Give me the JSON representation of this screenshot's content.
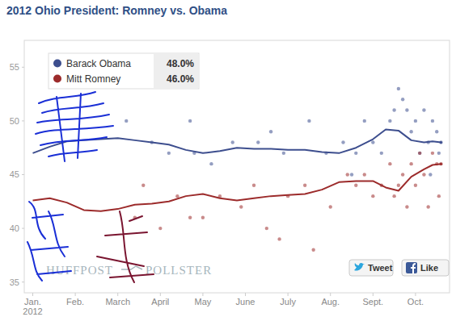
{
  "chart_data": {
    "type": "line",
    "title": "2012 Ohio President: Romney vs. Obama",
    "x": [
      1.0,
      1.4,
      1.8,
      2.2,
      2.6,
      3.0,
      3.4,
      3.8,
      4.2,
      4.6,
      5.0,
      5.4,
      5.8,
      6.2,
      6.6,
      7.0,
      7.4,
      7.8,
      8.2,
      8.6,
      9.0,
      9.3,
      9.6,
      9.9,
      10.2,
      10.4,
      10.6
    ],
    "xlim": [
      0.8,
      10.8
    ],
    "xticks": [
      {
        "value": 1,
        "label": "Jan."
      },
      {
        "value": 2,
        "label": "Feb."
      },
      {
        "value": 3,
        "label": "March"
      },
      {
        "value": 4,
        "label": "April"
      },
      {
        "value": 5,
        "label": "May"
      },
      {
        "value": 6,
        "label": "June"
      },
      {
        "value": 7,
        "label": "July"
      },
      {
        "value": 8,
        "label": "Aug."
      },
      {
        "value": 9,
        "label": "Sept."
      },
      {
        "value": 10,
        "label": "Oct."
      }
    ],
    "ylim": [
      34,
      57.5
    ],
    "yticks": [
      35,
      40,
      45,
      50,
      55
    ],
    "grid": false,
    "legend": "top-left",
    "year_label": "2012",
    "watermark": [
      "HUFFPOST",
      "POLLSTER"
    ],
    "buttons": [
      "Tweet",
      "Like"
    ],
    "series": [
      {
        "name": "Barack Obama",
        "color": "#3d4e8e",
        "marker": "circle",
        "values": [
          47.0,
          47.6,
          48.1,
          48.2,
          48.3,
          48.4,
          48.2,
          48.0,
          47.8,
          47.3,
          47.0,
          47.2,
          47.5,
          47.4,
          47.4,
          47.3,
          47.3,
          47.1,
          47.0,
          47.5,
          48.3,
          49.2,
          49.1,
          48.2,
          48.0,
          48.1,
          48.0
        ],
        "latest": {
          "value": 48.0,
          "label": "48.0%"
        },
        "polls": {
          "x": [
            3.2,
            3.8,
            4.2,
            4.7,
            4.8,
            5.2,
            5.7,
            6.3,
            6.6,
            6.9,
            7.5,
            7.9,
            8.3,
            8.5,
            8.6,
            8.8,
            9.0,
            9.2,
            9.4,
            9.5,
            9.6,
            9.7,
            9.8,
            9.9,
            10.0,
            10.1,
            10.2,
            10.3,
            10.35,
            10.4,
            10.5,
            10.55,
            10.6
          ],
          "values": [
            50,
            48,
            47,
            50,
            47,
            46,
            48,
            48,
            49,
            47,
            50,
            47,
            48,
            45,
            47,
            50,
            48,
            47,
            50,
            51,
            53,
            52,
            51,
            49,
            50,
            47,
            51,
            48,
            45,
            50,
            49,
            47,
            48
          ]
        }
      },
      {
        "name": "Mitt Romney",
        "color": "#9c2b2b",
        "marker": "circle",
        "values": [
          42.6,
          42.8,
          42.4,
          41.7,
          41.6,
          41.8,
          42.2,
          42.3,
          42.5,
          43.0,
          43.2,
          42.8,
          42.6,
          42.8,
          43.0,
          43.1,
          43.2,
          43.6,
          44.3,
          44.4,
          44.4,
          43.8,
          43.5,
          44.8,
          45.5,
          45.9,
          46.0
        ],
        "latest": {
          "value": 46.0,
          "label": "46.0%"
        },
        "polls": {
          "x": [
            3.4,
            3.6,
            4.0,
            4.4,
            4.7,
            5.0,
            5.4,
            5.9,
            6.2,
            6.5,
            6.8,
            7.0,
            7.4,
            7.6,
            8.0,
            8.4,
            8.6,
            8.8,
            9.0,
            9.2,
            9.4,
            9.5,
            9.6,
            9.7,
            9.8,
            9.9,
            10.0,
            10.1,
            10.2,
            10.3,
            10.4,
            10.5,
            10.55,
            10.6
          ],
          "values": [
            41,
            44,
            40,
            43,
            41,
            41,
            43,
            42,
            44,
            40,
            39,
            43,
            44,
            38,
            42,
            45,
            44,
            45,
            43,
            44,
            46,
            43,
            44,
            45,
            42,
            46,
            44,
            47,
            45,
            42,
            47,
            46,
            43,
            46
          ]
        }
      }
    ]
  }
}
